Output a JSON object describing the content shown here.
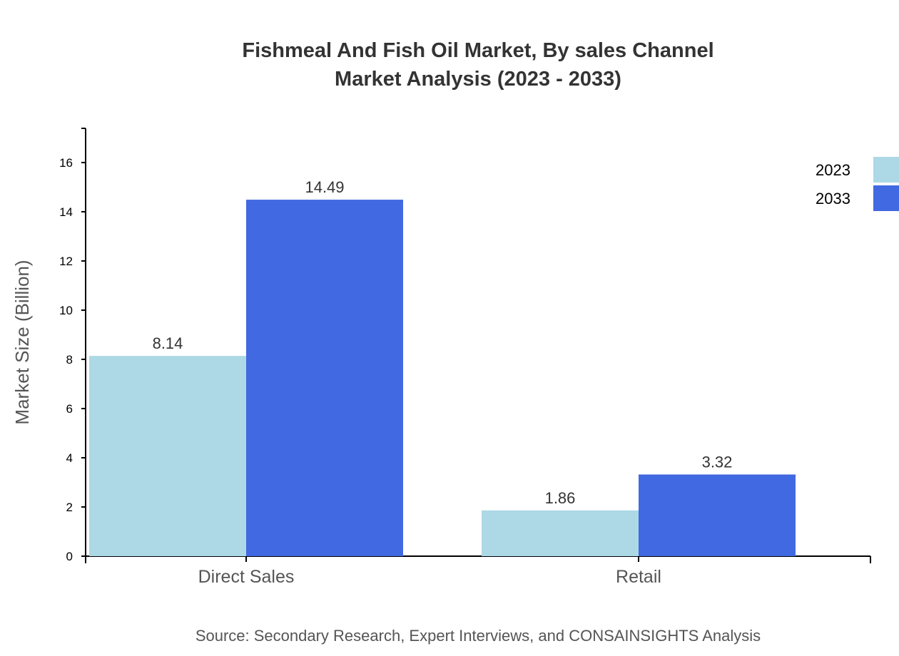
{
  "chart_data": {
    "type": "bar",
    "title": "Fishmeal And Fish Oil Market, By sales Channel",
    "subtitle": "Market Analysis (2023 - 2033)",
    "xlabel": "",
    "ylabel": "Market Size (Billion)",
    "categories": [
      "Direct Sales",
      "Retail"
    ],
    "series": [
      {
        "name": "2023",
        "values": [
          8.14,
          1.86
        ],
        "color": "#ADD8E6"
      },
      {
        "name": "2033",
        "values": [
          14.49,
          3.32
        ],
        "color": "#4169E1"
      }
    ],
    "ylim": [
      0,
      17.39
    ],
    "yticks": [
      0,
      2,
      4,
      6,
      8,
      10,
      12,
      14,
      16
    ],
    "grid": false,
    "legend": "top-right",
    "source": "Source: Secondary Research, Expert Interviews, and CONSAINSIGHTS Analysis"
  }
}
